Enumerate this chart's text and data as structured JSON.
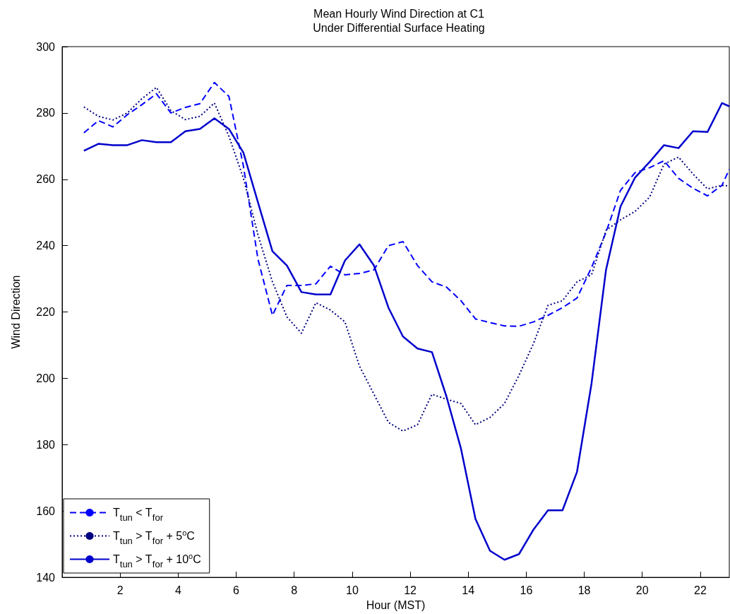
{
  "chart_data": {
    "type": "line",
    "title": "Mean Hourly Wind Direction at C1",
    "subtitle": "Under Differential Surface Heating",
    "xlabel": "Hour (MST)",
    "ylabel": "Wind Direction",
    "x": [
      0.75,
      1.25,
      1.75,
      2.25,
      2.75,
      3.25,
      3.75,
      4.25,
      4.75,
      5.25,
      5.75,
      6.25,
      6.75,
      7.25,
      7.75,
      8.25,
      8.75,
      9.25,
      9.75,
      10.25,
      10.75,
      11.25,
      11.75,
      12.25,
      12.75,
      13.25,
      13.75,
      14.25,
      14.75,
      15.25,
      15.75,
      16.25,
      16.75,
      17.25,
      17.75,
      18.25,
      18.75,
      19.25,
      19.75,
      20.25,
      20.75,
      21.25,
      21.75,
      22.25,
      22.75,
      23
    ],
    "series": [
      {
        "name": "T$_{tun}$ < T$_{for}$",
        "color": "#0000ff",
        "line_style": "dashed",
        "values": [
          274,
          277.7,
          275.8,
          279.5,
          282.5,
          285.8,
          280,
          281.7,
          282.8,
          289.2,
          285,
          264,
          236,
          219,
          228,
          228,
          228.5,
          233.8,
          231.2,
          231.6,
          232.7,
          240,
          241.2,
          234,
          229.1,
          227.5,
          223.4,
          217.9,
          216.8,
          215.8,
          215.7,
          217,
          219,
          221.3,
          224.2,
          233.4,
          244,
          256.7,
          262,
          263.5,
          265.6,
          260.3,
          257.3,
          255,
          258.2,
          263
        ]
      },
      {
        "name": "T$_{tun}$ > T$_{for}$ + 5$^{o}$C",
        "color": "#000080",
        "line_style": "dotted",
        "values": [
          281.8,
          279,
          277.9,
          280,
          284.3,
          287.7,
          280.7,
          278,
          279,
          283,
          273,
          260.3,
          243.3,
          229.1,
          218.5,
          213.6,
          222.8,
          220.6,
          217,
          203.7,
          195.2,
          186.7,
          184.1,
          186,
          195.2,
          193.7,
          192.4,
          186,
          188.2,
          192.4,
          200.9,
          210.5,
          222,
          223.4,
          229.1,
          231.2,
          244.6,
          247.8,
          250.3,
          254.6,
          264.6,
          266.7,
          261.6,
          257.1,
          258.2,
          258
        ]
      },
      {
        "name": "T$_{tun}$ > T$_{for}$ + 10$^{o}$C",
        "color": "#0000cc",
        "line_style": "solid",
        "values": [
          268.6,
          270.7,
          270.3,
          270.3,
          271.8,
          271.2,
          271.2,
          274.5,
          275.2,
          278.4,
          275.2,
          268,
          253.1,
          238.3,
          234,
          226,
          225.3,
          225.3,
          235.5,
          240.4,
          234,
          221.3,
          212.6,
          209,
          207.9,
          194.5,
          178.8,
          157.6,
          148,
          145.3,
          147,
          154.4,
          160.2,
          160.2,
          171.8,
          198.4,
          232.7,
          251.8,
          260.5,
          265.2,
          270.3,
          269.4,
          274.5,
          274.3,
          283,
          282
        ]
      }
    ],
    "xlim": [
      0,
      23
    ],
    "xticks": [
      2,
      4,
      6,
      8,
      10,
      12,
      14,
      16,
      18,
      20,
      22
    ],
    "ylim": [
      140,
      300
    ],
    "yticks": [
      140,
      160,
      180,
      200,
      220,
      240,
      260,
      280,
      300
    ],
    "grid": false,
    "legend": "bottom left",
    "marker": "none"
  }
}
